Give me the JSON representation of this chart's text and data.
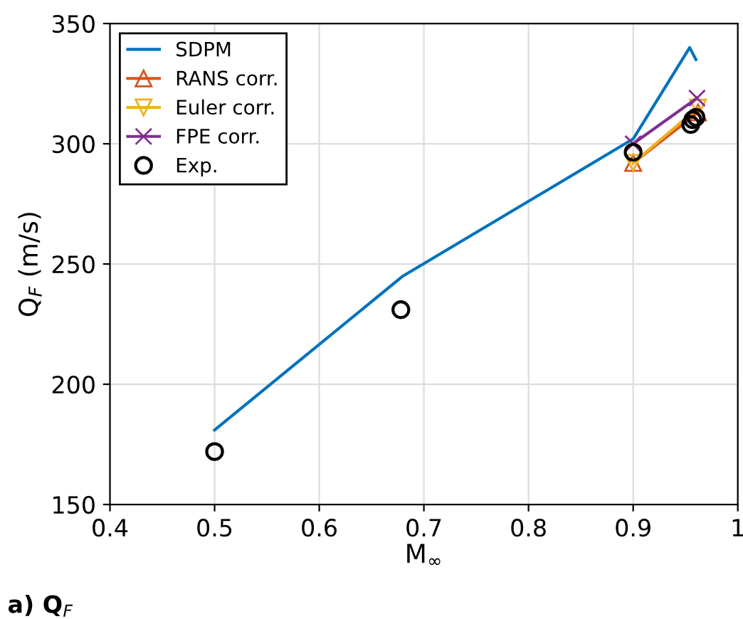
{
  "chart_data": {
    "type": "line",
    "xlabel": "M$_{∞}$",
    "ylabel": "Q$_{F}$ (m/s)",
    "annotations": [
      "a) Q$_{F}$"
    ],
    "xlim": [
      0.4,
      1
    ],
    "xticks": [
      0.4,
      0.5,
      0.6,
      0.7,
      0.8,
      0.9,
      1
    ],
    "ylim": [
      150,
      350
    ],
    "yticks": [
      150,
      200,
      250,
      300,
      350
    ],
    "grid": true,
    "legend": "top left",
    "series": [
      {
        "name": "SDPM",
        "color": "#0072bd",
        "x": [
          0.5,
          0.68,
          0.9,
          0.954,
          0.96
        ],
        "values": [
          181,
          245,
          302,
          340,
          335
        ],
        "marker": "none"
      },
      {
        "name": "RANS corr.",
        "color": "#d95319",
        "x": [
          0.9,
          0.962
        ],
        "values": [
          292,
          313
        ],
        "marker": "triangle"
      },
      {
        "name": "Euler corr.",
        "color": "#edb120",
        "x": [
          0.9,
          0.962
        ],
        "values": [
          292,
          315
        ],
        "marker": "triangle_down"
      },
      {
        "name": "FPE corr.",
        "color": "#7e2f8e",
        "x": [
          0.9,
          0.961
        ],
        "values": [
          300,
          319
        ],
        "marker": "cross"
      },
      {
        "name": "Exp.",
        "color": "#000000",
        "type": "scatter",
        "x": [
          0.5,
          0.678,
          0.9,
          0.955,
          0.957,
          0.96
        ],
        "values": [
          172,
          231,
          296.5,
          308,
          310,
          311
        ],
        "marker": "circle"
      }
    ]
  }
}
